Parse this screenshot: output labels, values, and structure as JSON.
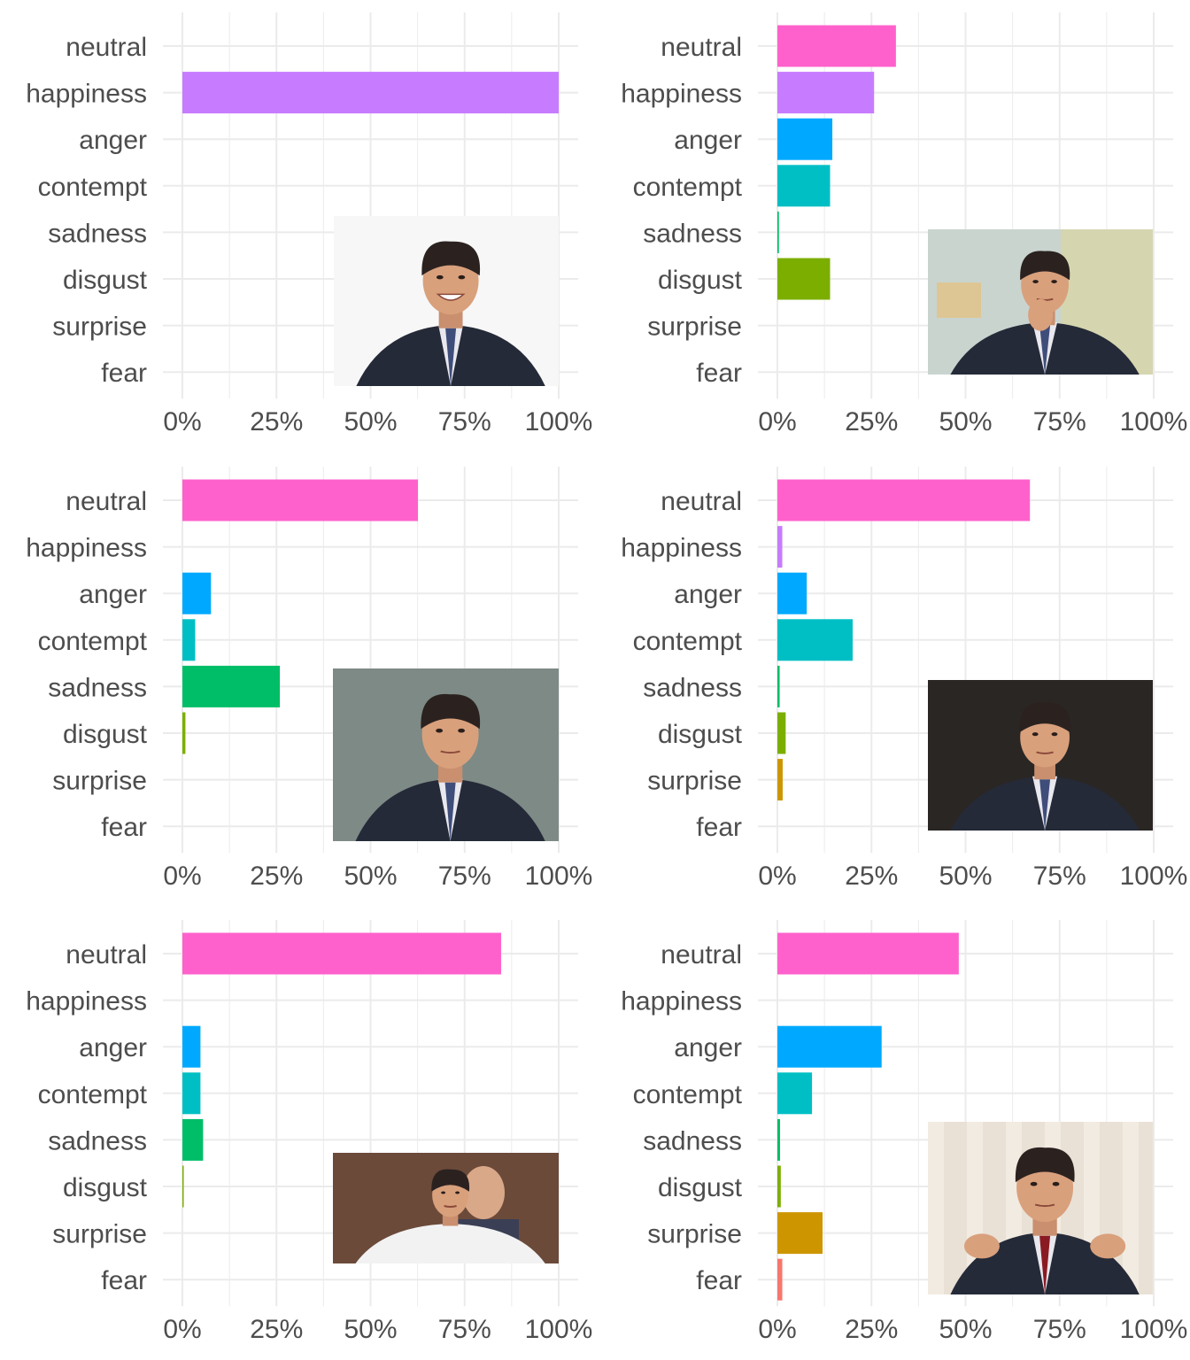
{
  "colors": {
    "neutral": "#FF61CC",
    "happiness": "#C77CFF",
    "anger": "#00A9FF",
    "contempt": "#00BFC4",
    "sadness": "#00BE67",
    "disgust": "#7CAE00",
    "surprise": "#CD9600",
    "fear": "#F8766D",
    "grid": "#ebebeb",
    "text": "#4d4d4d"
  },
  "chart_data": [
    {
      "type": "bar",
      "orientation": "horizontal",
      "categories": [
        "neutral",
        "happiness",
        "anger",
        "contempt",
        "sadness",
        "disgust",
        "surprise",
        "fear"
      ],
      "values": [
        0,
        100,
        0,
        0,
        0,
        0,
        0,
        0
      ],
      "xlim": [
        0,
        100
      ],
      "xticks": [
        "0%",
        "25%",
        "50%",
        "75%",
        "100%"
      ],
      "grid": true,
      "photo": "smiling-man-portrait"
    },
    {
      "type": "bar",
      "orientation": "horizontal",
      "categories": [
        "neutral",
        "happiness",
        "anger",
        "contempt",
        "sadness",
        "disgust",
        "surprise",
        "fear"
      ],
      "values": [
        31.5,
        25.7,
        14.6,
        14,
        0.4,
        14,
        0,
        0
      ],
      "xlim": [
        0,
        100
      ],
      "xticks": [
        "0%",
        "25%",
        "50%",
        "75%",
        "100%"
      ],
      "grid": true,
      "photo": "smirking-man-in-front-of-map"
    },
    {
      "type": "bar",
      "orientation": "horizontal",
      "categories": [
        "neutral",
        "happiness",
        "anger",
        "contempt",
        "sadness",
        "disgust",
        "surprise",
        "fear"
      ],
      "values": [
        62.6,
        0,
        7.6,
        3.4,
        25.9,
        0.8,
        0,
        0
      ],
      "xlim": [
        0,
        100
      ],
      "xticks": [
        "0%",
        "25%",
        "50%",
        "75%",
        "100%"
      ],
      "grid": true,
      "photo": "sad-man-in-corridor"
    },
    {
      "type": "bar",
      "orientation": "horizontal",
      "categories": [
        "neutral",
        "happiness",
        "anger",
        "contempt",
        "sadness",
        "disgust",
        "surprise",
        "fear"
      ],
      "values": [
        67.1,
        1.3,
        7.8,
        20,
        0.6,
        2.2,
        1.4,
        0
      ],
      "xlim": [
        0,
        100
      ],
      "xticks": [
        "0%",
        "25%",
        "50%",
        "75%",
        "100%"
      ],
      "grid": true,
      "photo": "man-speaking-dark-background"
    },
    {
      "type": "bar",
      "orientation": "horizontal",
      "categories": [
        "neutral",
        "happiness",
        "anger",
        "contempt",
        "sadness",
        "disgust",
        "surprise",
        "fear"
      ],
      "values": [
        84.7,
        0,
        4.8,
        4.8,
        5.5,
        0.3,
        0,
        0
      ],
      "xlim": [
        0,
        100
      ],
      "xticks": [
        "0%",
        "25%",
        "50%",
        "75%",
        "100%"
      ],
      "grid": true,
      "photo": "man-in-white-shirt-with-others"
    },
    {
      "type": "bar",
      "orientation": "horizontal",
      "categories": [
        "neutral",
        "happiness",
        "anger",
        "contempt",
        "sadness",
        "disgust",
        "surprise",
        "fear"
      ],
      "values": [
        48.2,
        0,
        27.7,
        9.2,
        0.7,
        0.9,
        12,
        1.3
      ],
      "xlim": [
        0,
        100
      ],
      "xticks": [
        "0%",
        "25%",
        "50%",
        "75%",
        "100%"
      ],
      "grid": true,
      "photo": "man-gesturing-with-hands"
    }
  ]
}
